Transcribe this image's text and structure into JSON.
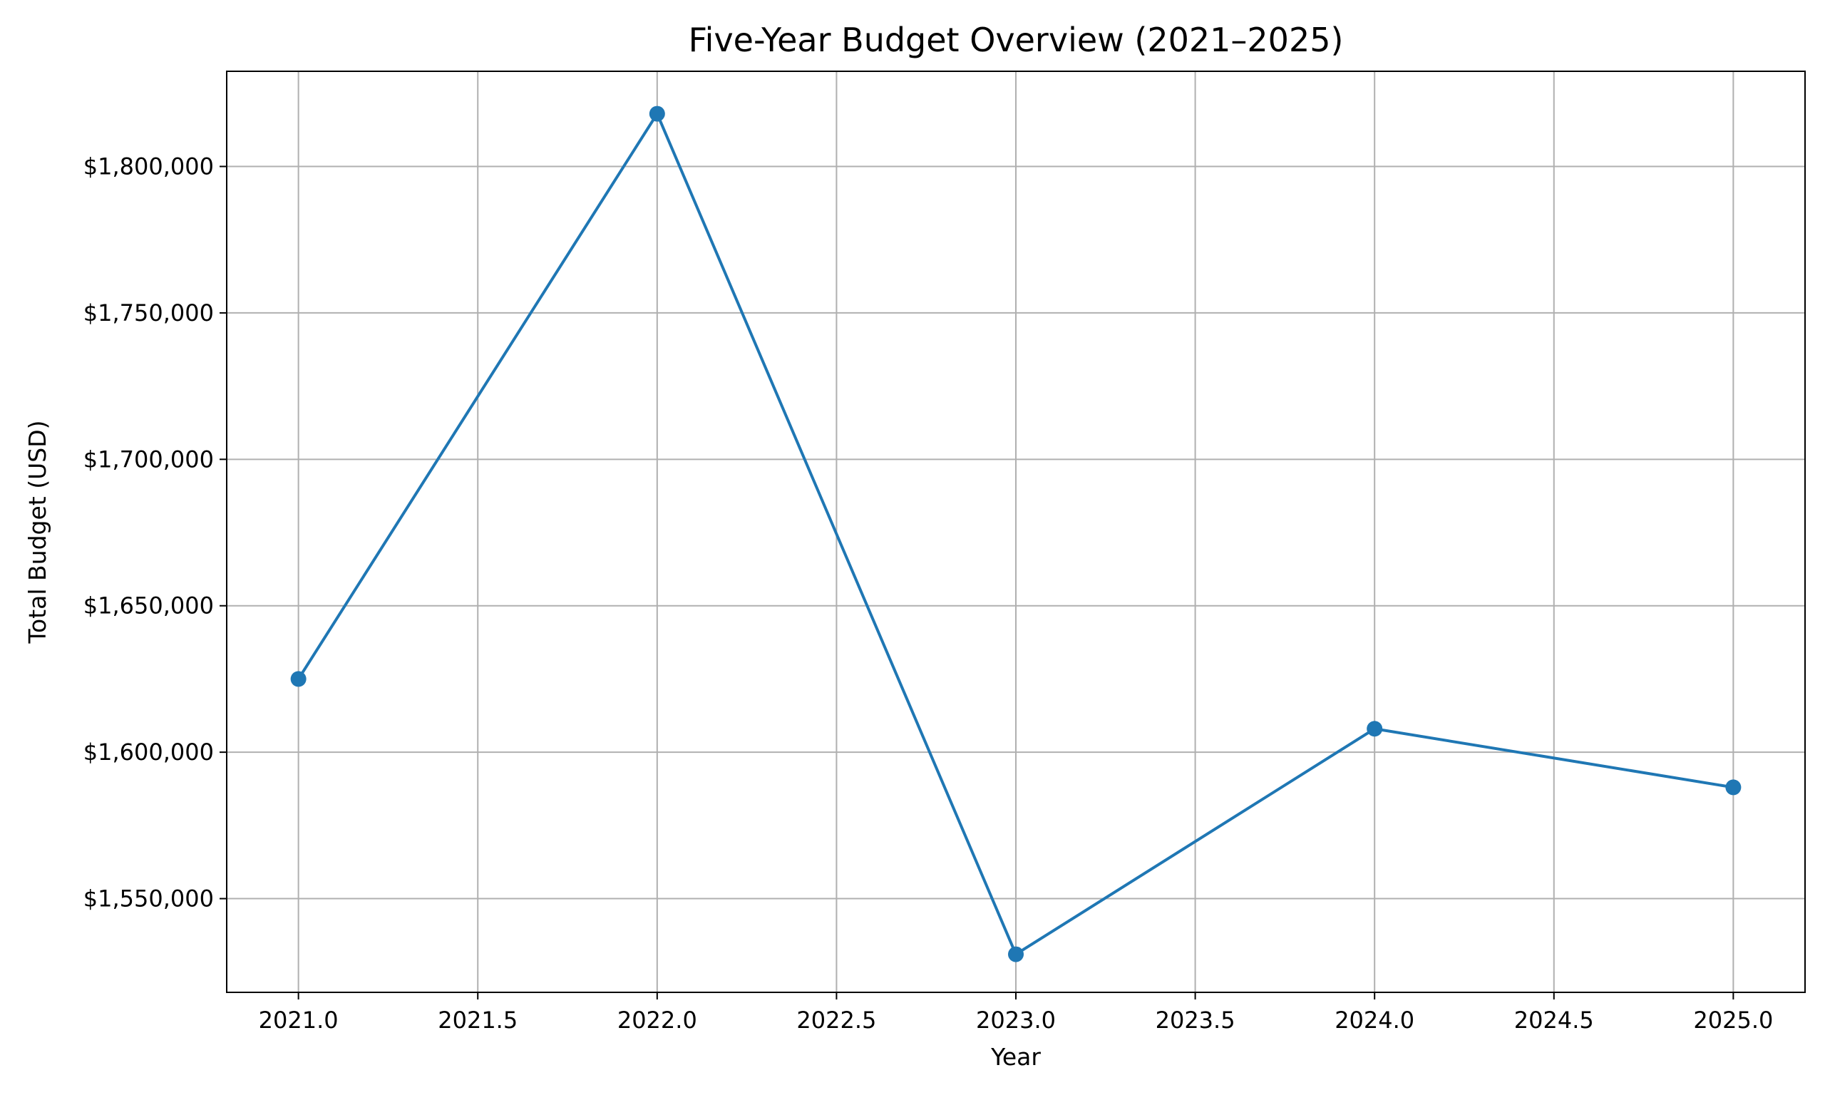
{
  "chart_data": {
    "type": "line",
    "title": "Five-Year Budget Overview (2021–2025)",
    "xlabel": "Year",
    "ylabel": "Total Budget (USD)",
    "x": [
      2021,
      2022,
      2023,
      2024,
      2025
    ],
    "series": [
      {
        "values": [
          1625000,
          1818000,
          1531000,
          1608000,
          1588000
        ],
        "color": "#1f77b4",
        "marker": "circle"
      }
    ],
    "xlim": [
      2020.8,
      2025.2
    ],
    "ylim": [
      1518000,
      1832500
    ],
    "xticks": [
      2021.0,
      2021.5,
      2022.0,
      2022.5,
      2023.0,
      2023.5,
      2024.0,
      2024.5,
      2025.0
    ],
    "xtick_labels": [
      "2021.0",
      "2021.5",
      "2022.0",
      "2022.5",
      "2023.0",
      "2023.5",
      "2024.0",
      "2024.5",
      "2025.0"
    ],
    "yticks": [
      1550000,
      1600000,
      1650000,
      1700000,
      1750000,
      1800000
    ],
    "ytick_labels": [
      "$1,550,000",
      "$1,600,000",
      "$1,650,000",
      "$1,700,000",
      "$1,750,000",
      "$1,800,000"
    ],
    "grid": true,
    "legend": "none"
  }
}
